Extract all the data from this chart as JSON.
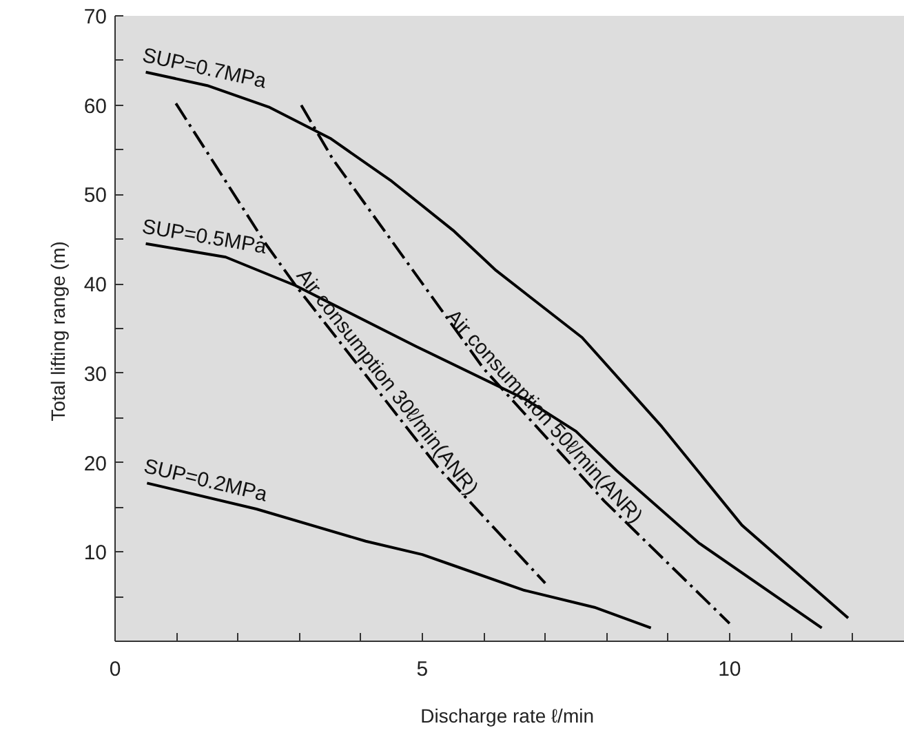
{
  "chart_data": {
    "type": "line",
    "xlabel": "Discharge rate  ℓ/min",
    "ylabel": "Total lifting range  (m)",
    "xlim": [
      0,
      12.85
    ],
    "ylim": [
      0,
      70
    ],
    "xticks": [
      0,
      {
        "value": 1,
        "label": null
      },
      {
        "value": 2,
        "label": null
      },
      {
        "value": 3,
        "label": null
      },
      {
        "value": 4,
        "label": null
      },
      5,
      {
        "value": 6,
        "label": null
      },
      {
        "value": 7,
        "label": null
      },
      {
        "value": 8,
        "label": null
      },
      {
        "value": 9,
        "label": null
      },
      10,
      {
        "value": 11,
        "label": null
      },
      {
        "value": 12,
        "label": null
      }
    ],
    "yticks": [
      {
        "value": 5,
        "label": null
      },
      10,
      {
        "value": 15,
        "label": null
      },
      20,
      {
        "value": 25,
        "label": null
      },
      30,
      {
        "value": 35,
        "label": null
      },
      40,
      {
        "value": 45,
        "label": null
      },
      50,
      {
        "value": 55,
        "label": null
      },
      60,
      {
        "value": 65,
        "label": null
      },
      70
    ],
    "grid": false,
    "marker": "none",
    "series": [
      {
        "name": "SUP=0.7MPa",
        "color": "#000000",
        "line_style": "solid",
        "x": [
          0.5,
          1.5,
          2.5,
          3.5,
          4.5,
          5.5,
          6.2,
          7.6,
          8.9,
          10.2,
          11.93
        ],
        "values": [
          63.7,
          62.2,
          59.8,
          56.3,
          51.5,
          46,
          41.5,
          34,
          24,
          13,
          2.6
        ]
      },
      {
        "name": "SUP=0.5MPa",
        "color": "#000000",
        "line_style": "solid",
        "x": [
          0.5,
          1.8,
          2.94,
          4.9,
          6.7,
          7.5,
          8.16,
          9.5,
          11.5
        ],
        "values": [
          44.5,
          43.0,
          39.8,
          33,
          27,
          23.5,
          19.1,
          11,
          1.5
        ]
      },
      {
        "name": "SUP=0.2MPa",
        "color": "#000000",
        "line_style": "solid",
        "x": [
          0.52,
          2.3,
          4.08,
          5.0,
          5.5,
          6.66,
          7.8,
          8.72
        ],
        "values": [
          17.7,
          14.8,
          11.2,
          9.7,
          8.5,
          5.7,
          3.8,
          1.5
        ]
      },
      {
        "name": "Air consumption  30ℓ/min(ANR)",
        "color": "#000000",
        "line_style": "dashdot",
        "x": [
          0.99,
          2.44,
          2.94,
          5.25,
          7.0
        ],
        "values": [
          60.2,
          44.6,
          39.8,
          19.5,
          6.5
        ]
      },
      {
        "name": "Air consumption  50ℓ/min(ANR)",
        "color": "#000000",
        "line_style": "dashdot",
        "x": [
          3.03,
          3.54,
          6.0,
          7.96,
          10.0
        ],
        "values": [
          60,
          54,
          30.5,
          15.7,
          2
        ]
      }
    ]
  }
}
